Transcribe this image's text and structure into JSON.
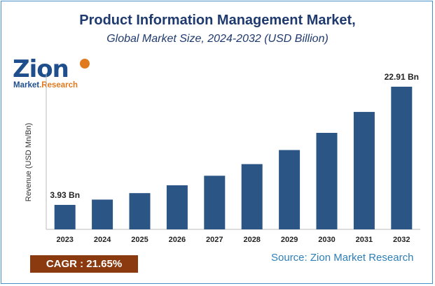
{
  "header": {
    "title": "Product Information Management Market,",
    "subtitle": "Global Market Size, 2024-2032 (USD Billion)"
  },
  "logo": {
    "main": "Zion",
    "sub_left": "Market",
    "sub_right": ".Research"
  },
  "footer": {
    "cagr": "CAGR : 21.65%",
    "source": "Source: Zion Market Research"
  },
  "chart_data": {
    "type": "bar",
    "title": "Product Information Management Market,",
    "subtitle": "Global Market Size, 2024-2032 (USD Billion)",
    "xlabel": "",
    "ylabel": "Revenue (USD Mn/Bn)",
    "categories": [
      "2023",
      "2024",
      "2025",
      "2026",
      "2027",
      "2028",
      "2029",
      "2030",
      "2031",
      "2032"
    ],
    "values": [
      3.93,
      4.78,
      5.82,
      7.08,
      8.61,
      10.48,
      12.74,
      15.5,
      18.86,
      22.91
    ],
    "data_labels": {
      "2023": "3.93 Bn",
      "2032": "22.91 Bn"
    },
    "ylim": [
      0,
      26
    ],
    "grid": false,
    "bar_color": "#2b5585"
  }
}
